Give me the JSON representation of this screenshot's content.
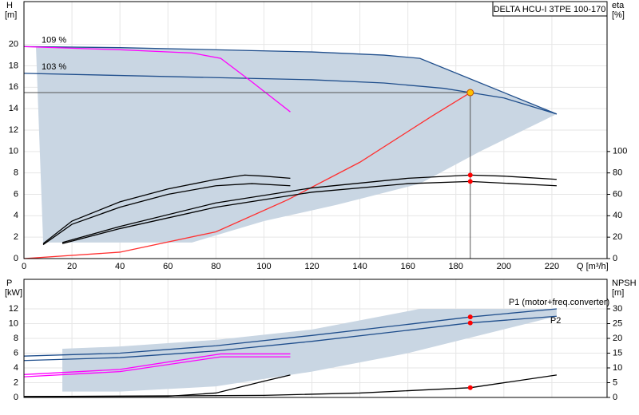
{
  "chart_data": [
    {
      "type": "line",
      "title": "DELTA HCU-I 3TPE 100-170",
      "y_label": "H",
      "y_unit": "[m]",
      "y2_label": "eta",
      "y2_unit": "[%]",
      "x_label": "Q [m³/h]",
      "xlim": [
        0,
        243
      ],
      "ylim": [
        0,
        24
      ],
      "y2lim": [
        0,
        240
      ],
      "xticks": [
        0,
        20,
        40,
        60,
        80,
        100,
        120,
        140,
        160,
        180,
        200,
        220
      ],
      "yticks": [
        0,
        2,
        4,
        6,
        8,
        10,
        12,
        14,
        16,
        18,
        20
      ],
      "y2ticks": [
        0,
        20,
        40,
        60,
        80,
        100
      ],
      "show_xtick_labels": true,
      "grid": true,
      "series": [
        {
          "style": "area",
          "color": "#c9d6e3",
          "x": [
            5,
            40,
            80,
            120,
            150,
            165,
            222,
            190,
            165,
            130,
            100,
            70,
            8
          ],
          "values": [
            19.8,
            19.7,
            19.5,
            19.3,
            19.0,
            18.7,
            13.5,
            10,
            7,
            5,
            3.5,
            1.5,
            1.5
          ]
        },
        {
          "name": "109 %",
          "style": "line",
          "color": "#1f4e8c",
          "x": [
            0,
            40,
            80,
            120,
            150,
            165,
            222
          ],
          "values": [
            19.8,
            19.7,
            19.5,
            19.3,
            19.0,
            18.7,
            13.5
          ]
        },
        {
          "name": "103 %",
          "style": "line",
          "color": "#1f4e8c",
          "x": [
            0,
            40,
            80,
            120,
            150,
            175,
            186,
            200,
            222
          ],
          "values": [
            17.3,
            17.1,
            16.9,
            16.7,
            16.4,
            15.9,
            15.5,
            15.0,
            13.5
          ]
        },
        {
          "style": "line",
          "color": "#ff00ff",
          "x": [
            0,
            40,
            70,
            82,
            95,
            111
          ],
          "values": [
            19.8,
            19.5,
            19.2,
            18.7,
            16.5,
            13.7
          ]
        },
        {
          "style": "line",
          "color": "#ff3030",
          "x": [
            0,
            40,
            80,
            110,
            140,
            170,
            186
          ],
          "values": [
            0,
            0.6,
            2.5,
            5.5,
            9,
            13.3,
            15.5
          ]
        },
        {
          "style": "line",
          "color": "#000000",
          "axis": "y2",
          "x": [
            8,
            20,
            40,
            60,
            80,
            92,
            100,
            111
          ],
          "values": [
            14,
            35,
            53,
            65,
            74,
            78,
            77,
            75
          ]
        },
        {
          "style": "line",
          "color": "#000000",
          "axis": "y2",
          "x": [
            8,
            20,
            40,
            60,
            80,
            95,
            111
          ],
          "values": [
            13,
            32,
            48,
            60,
            68,
            70,
            68
          ]
        },
        {
          "style": "line",
          "color": "#000000",
          "axis": "y2",
          "x": [
            16,
            40,
            80,
            120,
            160,
            186,
            200,
            222
          ],
          "values": [
            15,
            30,
            52,
            66,
            75,
            78,
            77,
            74
          ]
        },
        {
          "style": "line",
          "color": "#000000",
          "axis": "y2",
          "x": [
            16,
            40,
            80,
            120,
            160,
            186,
            222
          ],
          "values": [
            14,
            28,
            48,
            62,
            70,
            72,
            68
          ]
        },
        {
          "style": "point",
          "color": "#ffc000",
          "guide": true,
          "x": [
            186
          ],
          "values": [
            15.5
          ]
        },
        {
          "style": "point",
          "color": "#ff0000",
          "axis": "y2",
          "x": [
            186,
            186
          ],
          "values": [
            78,
            72
          ]
        }
      ]
    },
    {
      "type": "line",
      "y_label": "P",
      "y_unit": "[kW]",
      "y2_label": "NPSH",
      "y2_unit": "[m]",
      "xlim": [
        0,
        243
      ],
      "ylim": [
        0,
        16
      ],
      "y2lim": [
        0,
        40
      ],
      "xticks": [
        0,
        20,
        40,
        60,
        80,
        100,
        120,
        140,
        160,
        180,
        200,
        220
      ],
      "yticks": [
        0,
        2,
        4,
        6,
        8,
        10,
        12
      ],
      "y2ticks": [
        0,
        5,
        10,
        15,
        20,
        25,
        30
      ],
      "show_xtick_labels": false,
      "grid": true,
      "series": [
        {
          "style": "area",
          "color": "#c9d6e3",
          "x": [
            16,
            40,
            80,
            120,
            165,
            222,
            222,
            160,
            120,
            80,
            40,
            16
          ],
          "values": [
            6.6,
            6.9,
            7.8,
            9.2,
            12.0,
            12.0,
            11.0,
            6.0,
            3.5,
            1.5,
            0.8,
            0.8
          ]
        },
        {
          "name": "P1 (motor+freq.converter)",
          "style": "line",
          "color": "#1f4e8c",
          "x": [
            0,
            40,
            80,
            120,
            160,
            186,
            222
          ],
          "values": [
            5.6,
            6.0,
            7.0,
            8.4,
            9.9,
            10.9,
            12.0
          ]
        },
        {
          "name": "P2",
          "style": "line",
          "color": "#1f4e8c",
          "x": [
            0,
            40,
            80,
            120,
            160,
            186,
            222
          ],
          "values": [
            5.0,
            5.4,
            6.3,
            7.6,
            9.1,
            10.1,
            11.0
          ]
        },
        {
          "style": "line",
          "color": "#ff00ff",
          "x": [
            0,
            40,
            82,
            111
          ],
          "values": [
            3.1,
            3.8,
            5.9,
            5.9
          ]
        },
        {
          "style": "line",
          "color": "#ff00ff",
          "x": [
            0,
            40,
            82,
            111
          ],
          "values": [
            2.8,
            3.5,
            5.5,
            5.5
          ]
        },
        {
          "style": "line",
          "color": "#000000",
          "axis": "y2",
          "x": [
            0,
            60,
            80,
            100,
            111
          ],
          "values": [
            0.3,
            0.4,
            1.5,
            5.5,
            7.6
          ]
        },
        {
          "style": "line",
          "color": "#000000",
          "axis": "y2",
          "x": [
            0,
            100,
            140,
            186,
            222
          ],
          "values": [
            0.3,
            0.7,
            1.5,
            3.3,
            7.6
          ]
        },
        {
          "style": "point",
          "color": "#ff0000",
          "x": [
            186,
            186
          ],
          "values": [
            10.9,
            10.1
          ]
        },
        {
          "style": "point",
          "color": "#ff0000",
          "axis": "y2",
          "x": [
            186
          ],
          "values": [
            3.3
          ]
        }
      ]
    }
  ]
}
